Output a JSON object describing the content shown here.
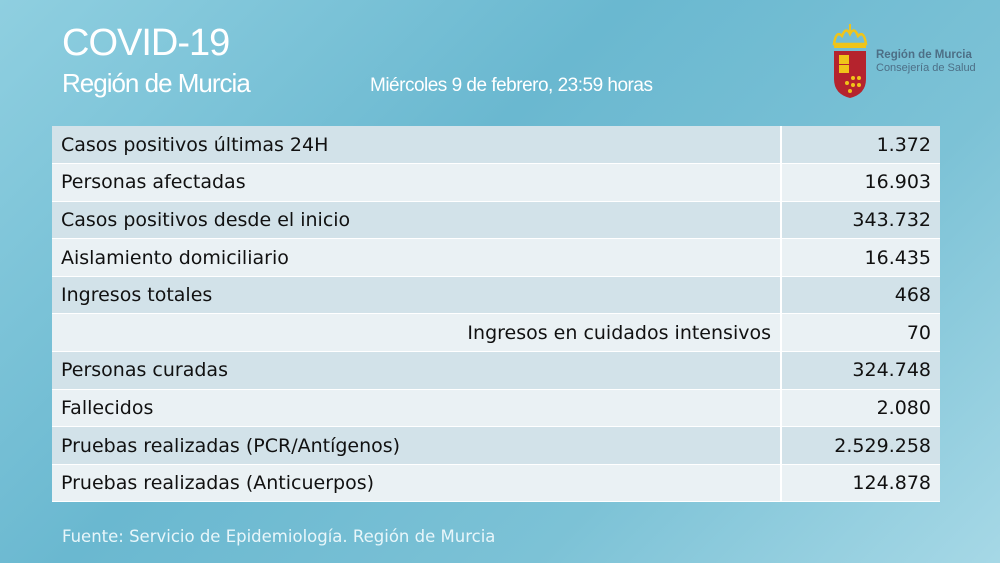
{
  "header": {
    "title": "COVID-19",
    "subtitle": "Región de Murcia",
    "date": "Miércoles 9 de febrero, 23:59 horas"
  },
  "logo": {
    "line1": "Región de Murcia",
    "line2": "Consejería de Salud",
    "colors": {
      "shield": "#b5232d",
      "crown": "#f0c419"
    }
  },
  "rows": [
    {
      "label": "Casos positivos últimas 24H",
      "value": "1.372"
    },
    {
      "label": "Personas afectadas",
      "value": "16.903"
    },
    {
      "label": "Casos positivos desde el inicio",
      "value": "343.732"
    },
    {
      "label": "Aislamiento domiciliario",
      "value": "16.435"
    },
    {
      "label": "Ingresos totales",
      "value": "468"
    },
    {
      "label": "Ingresos en cuidados intensivos",
      "value": "70",
      "indented": true
    },
    {
      "label": "Personas curadas",
      "value": "324.748"
    },
    {
      "label": "Fallecidos",
      "value": "2.080"
    },
    {
      "label": "Pruebas realizadas (PCR/Antígenos)",
      "value": "2.529.258"
    },
    {
      "label": "Pruebas realizadas (Anticuerpos)",
      "value": "124.878"
    }
  ],
  "footer": {
    "source": "Fuente: Servicio de Epidemiología. Región de Murcia"
  }
}
